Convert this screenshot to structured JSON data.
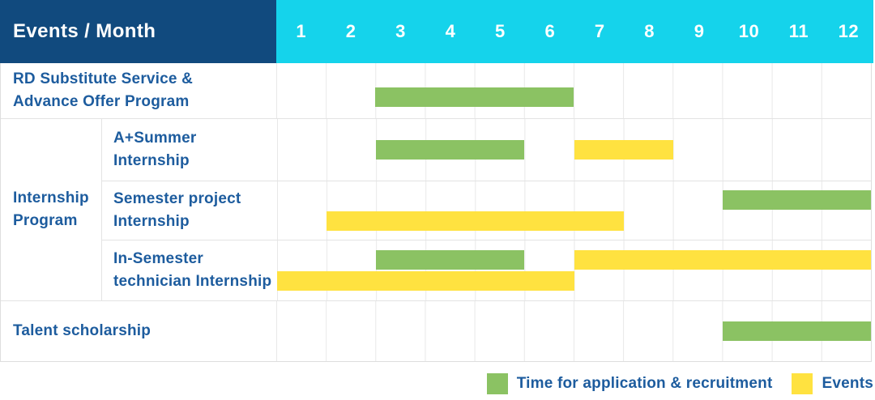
{
  "header": {
    "label": "Events / Month",
    "months": [
      "1",
      "2",
      "3",
      "4",
      "5",
      "6",
      "7",
      "8",
      "9",
      "10",
      "11",
      "12"
    ]
  },
  "colors": {
    "navy": "#114A7E",
    "cyan": "#15D3EB",
    "green": "#8BC263",
    "yellow": "#FFE240",
    "text-blue": "#1D5C9E",
    "header-text": "#FFFFFF",
    "grid-line": "#E8E8E8",
    "row-line": "#E3E3E3",
    "outer-line": "#DEDEDE"
  },
  "chart_data": {
    "type": "gantt",
    "x_unit": "month",
    "x_range": [
      1,
      12
    ],
    "grid": true,
    "row_group": {
      "label": "Internship Program",
      "label_lines": [
        "Internship",
        "Program"
      ],
      "row_indexes": [
        1,
        2,
        3
      ]
    },
    "series": [
      {
        "name": "Time for application & recruitment",
        "color": "#8BC263"
      },
      {
        "name": "Events",
        "color": "#FFE240"
      }
    ],
    "rows": [
      {
        "id": "rd-substitute-service",
        "label": "RD Substitute Service & Advance Offer Program",
        "label_lines": [
          "RD Substitute Service &",
          "Advance Offer Program"
        ],
        "bars": [
          {
            "series": "Time for application & recruitment",
            "start_month": 3,
            "end_month": 6,
            "lane": "center-low"
          }
        ]
      },
      {
        "id": "a-plus-summer-internship",
        "label": "A+Summer Internship",
        "label_lines": [
          "A+Summer",
          "Internship"
        ],
        "bars": [
          {
            "series": "Time for application & recruitment",
            "start_month": 3,
            "end_month": 5,
            "lane": "center"
          },
          {
            "series": "Events",
            "start_month": 7,
            "end_month": 8,
            "lane": "center"
          }
        ]
      },
      {
        "id": "semester-project-internship",
        "label": "Semester project Internship",
        "label_lines": [
          "Semester project",
          "Internship"
        ],
        "bars": [
          {
            "series": "Time for application & recruitment",
            "start_month": 10,
            "end_month": 12,
            "lane": "upper"
          },
          {
            "series": "Events",
            "start_month": 2,
            "end_month": 7,
            "lane": "lower"
          }
        ]
      },
      {
        "id": "in-semester-technician-internship",
        "label": "In-Semester technician Internship",
        "label_lines": [
          "In-Semester",
          "technician Internship"
        ],
        "bars": [
          {
            "series": "Time for application & recruitment",
            "start_month": 3,
            "end_month": 5,
            "lane": "upper"
          },
          {
            "series": "Events",
            "start_month": 7,
            "end_month": 12,
            "lane": "upper"
          },
          {
            "series": "Events",
            "start_month": 1,
            "end_month": 6,
            "lane": "lower"
          }
        ]
      },
      {
        "id": "talent-scholarship",
        "label": "Talent scholarship",
        "label_lines": [
          "Talent scholarship"
        ],
        "bars": [
          {
            "series": "Time for application & recruitment",
            "start_month": 10,
            "end_month": 12,
            "lane": "center"
          }
        ]
      }
    ]
  },
  "legend": {
    "items": [
      {
        "label": "Time for application & recruitment",
        "color": "#8BC263"
      },
      {
        "label": "Events",
        "color": "#FFE240"
      }
    ]
  }
}
